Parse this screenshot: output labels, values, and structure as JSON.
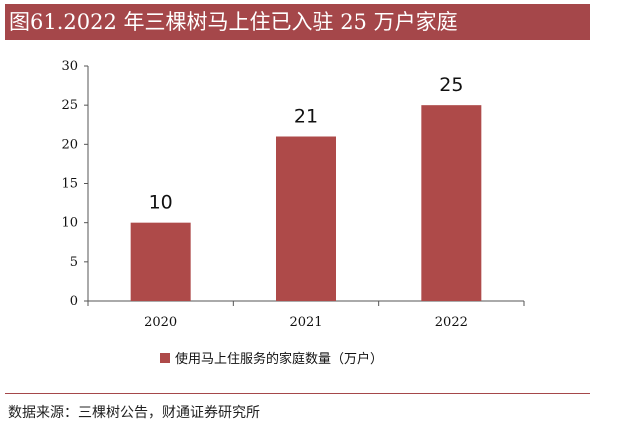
{
  "header": {
    "title": "图61.2022 年三棵树马上住已入驻 25 万户家庭"
  },
  "chart_data": {
    "type": "bar",
    "categories": [
      "2020",
      "2021",
      "2022"
    ],
    "series": [
      {
        "name": "使用马上住服务的家庭数量（万户）",
        "values": [
          10,
          21,
          25
        ],
        "color": "#ae4a49"
      }
    ],
    "ylim": [
      0,
      30
    ],
    "yticks": [
      0,
      5,
      10,
      15,
      20,
      25,
      30
    ],
    "data_labels": [
      "10",
      "21",
      "25"
    ],
    "grid": false,
    "legend_position": "bottom"
  },
  "footer": {
    "source": "数据来源：三棵树公告，财通证券研究所"
  }
}
